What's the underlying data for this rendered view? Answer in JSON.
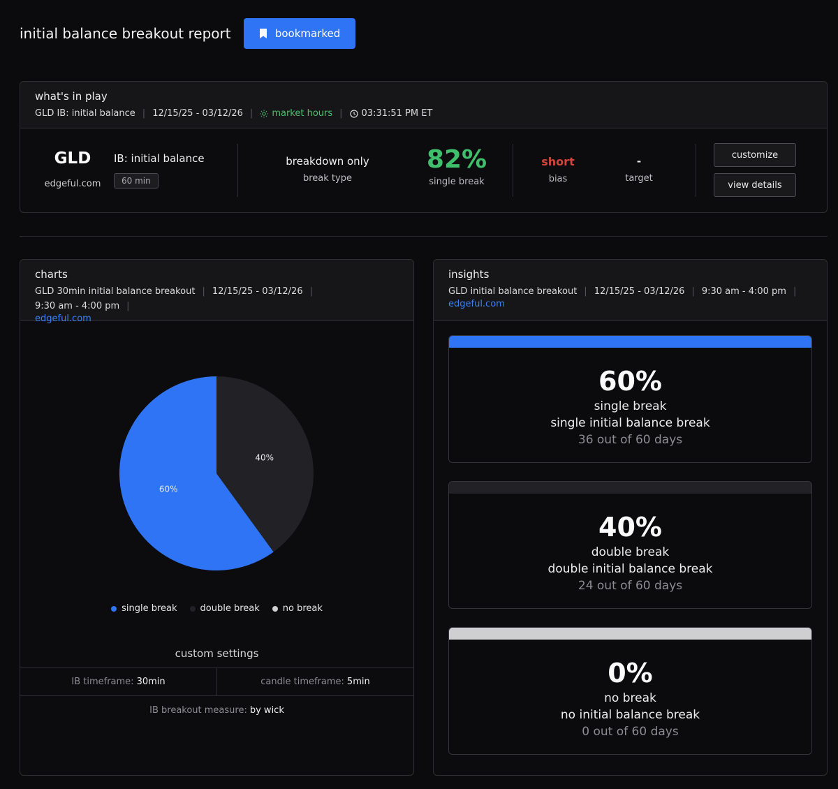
{
  "header": {
    "title": "initial balance breakout report",
    "bookmark_label": "bookmarked"
  },
  "play": {
    "title": "what's in play",
    "meta": {
      "ib": "GLD IB: initial balance",
      "range": "12/15/25 - 03/12/26",
      "session": "market hours",
      "time": "03:31:51 PM ET"
    },
    "ticker": "GLD",
    "source": "edgeful.com",
    "ib_label": "IB: initial balance",
    "timeframe": "60 min",
    "break_type_value": "breakdown only",
    "break_type_label": "break type",
    "pct": "82%",
    "pct_label": "single break",
    "bias_value": "short",
    "bias_label": "bias",
    "target_value": "-",
    "target_label": "target",
    "customize_label": "customize",
    "details_label": "view details"
  },
  "charts": {
    "title": "charts",
    "meta": {
      "report": "GLD 30min initial balance breakout",
      "range": "12/15/25 - 03/12/26",
      "hours": "9:30 am - 4:00 pm",
      "link": "edgeful.com"
    },
    "legend": [
      {
        "label": "single break",
        "color": "#2f74f5"
      },
      {
        "label": "double break",
        "color": "#222226"
      },
      {
        "label": "no break",
        "color": "#cfcfd2"
      }
    ],
    "custom_title": "custom settings",
    "settings": {
      "ib_tf_label": "IB timeframe:",
      "ib_tf_value": "30min",
      "candle_tf_label": "candle timeframe:",
      "candle_tf_value": "5min",
      "measure_label": "IB breakout measure:",
      "measure_value": "by wick"
    }
  },
  "chart_data": {
    "type": "pie",
    "categories": [
      "single break",
      "double break",
      "no break"
    ],
    "values": [
      60,
      40,
      0
    ],
    "labels": [
      "60%",
      "40%",
      ""
    ],
    "colors": [
      "#2f74f5",
      "#222226",
      "#cfcfd2"
    ],
    "title": ""
  },
  "insights": {
    "title": "insights",
    "meta": {
      "report": "GLD initial balance breakout",
      "range": "12/15/25 - 03/12/26",
      "hours": "9:30 am - 4:00 pm",
      "link": "edgeful.com"
    },
    "cards": [
      {
        "pct": "60%",
        "name": "single break",
        "desc": "single initial balance break",
        "days": "36 out of 60 days",
        "color": "#2f74f5"
      },
      {
        "pct": "40%",
        "name": "double break",
        "desc": "double initial balance break",
        "days": "24 out of 60 days",
        "color": "#222226"
      },
      {
        "pct": "0%",
        "name": "no break",
        "desc": "no initial balance break",
        "days": "0 out of 60 days",
        "color": "#cfcfd2"
      }
    ]
  }
}
